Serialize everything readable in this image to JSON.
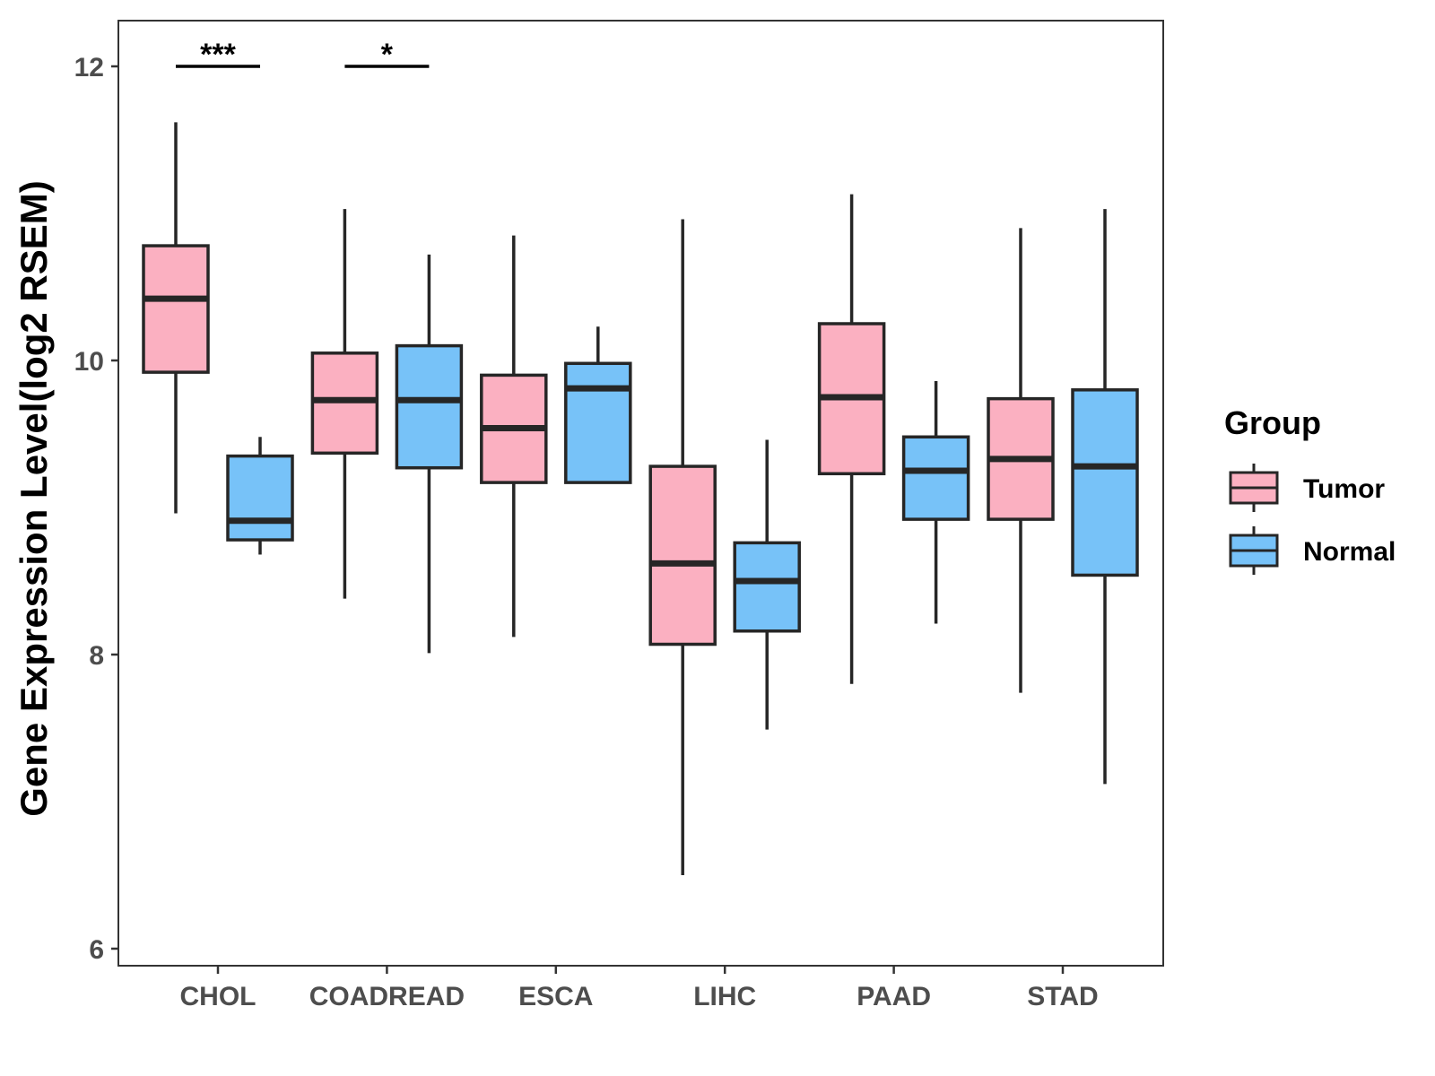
{
  "chart_data": {
    "type": "boxplot",
    "title": "",
    "xlabel": "",
    "ylabel": "Gene Expression Level(log2 RSEM)",
    "ylim": [
      5.9,
      12.3
    ],
    "yticks": [
      6,
      8,
      10,
      12
    ],
    "categories": [
      "CHOL",
      "COADREAD",
      "ESCA",
      "LIHC",
      "PAAD",
      "STAD"
    ],
    "legend": {
      "title": "Group",
      "placement": "right",
      "entries": [
        "Tumor",
        "Normal"
      ]
    },
    "colors": {
      "Tumor": "#FBB0C1",
      "Normal": "#77C2F8",
      "outline": "#262626"
    },
    "series": [
      {
        "name": "Tumor",
        "boxes": [
          {
            "min": 8.96,
            "q1": 9.92,
            "median": 10.42,
            "q3": 10.78,
            "max": 11.62
          },
          {
            "min": 8.38,
            "q1": 9.37,
            "median": 9.73,
            "q3": 10.05,
            "max": 11.03
          },
          {
            "min": 8.12,
            "q1": 9.17,
            "median": 9.54,
            "q3": 9.9,
            "max": 10.85
          },
          {
            "min": 6.5,
            "q1": 8.07,
            "median": 8.62,
            "q3": 9.28,
            "max": 10.96
          },
          {
            "min": 7.8,
            "q1": 9.23,
            "median": 9.75,
            "q3": 10.25,
            "max": 11.13
          },
          {
            "min": 7.74,
            "q1": 8.92,
            "median": 9.33,
            "q3": 9.74,
            "max": 10.9
          }
        ]
      },
      {
        "name": "Normal",
        "boxes": [
          {
            "min": 8.68,
            "q1": 8.78,
            "median": 8.91,
            "q3": 9.35,
            "max": 9.48
          },
          {
            "min": 8.01,
            "q1": 9.27,
            "median": 9.73,
            "q3": 10.1,
            "max": 10.72
          },
          {
            "min": 9.17,
            "q1": 9.17,
            "median": 9.81,
            "q3": 9.98,
            "max": 10.23
          },
          {
            "min": 7.49,
            "q1": 8.16,
            "median": 8.5,
            "q3": 8.76,
            "max": 9.46
          },
          {
            "min": 8.21,
            "q1": 8.92,
            "median": 9.25,
            "q3": 9.48,
            "max": 9.86
          },
          {
            "min": 7.12,
            "q1": 8.54,
            "median": 9.28,
            "q3": 9.8,
            "max": 11.03
          }
        ]
      }
    ],
    "annotations": [
      {
        "category": "CHOL",
        "label": "***",
        "y": 12.0
      },
      {
        "category": "COADREAD",
        "label": "*",
        "y": 12.0
      }
    ]
  }
}
